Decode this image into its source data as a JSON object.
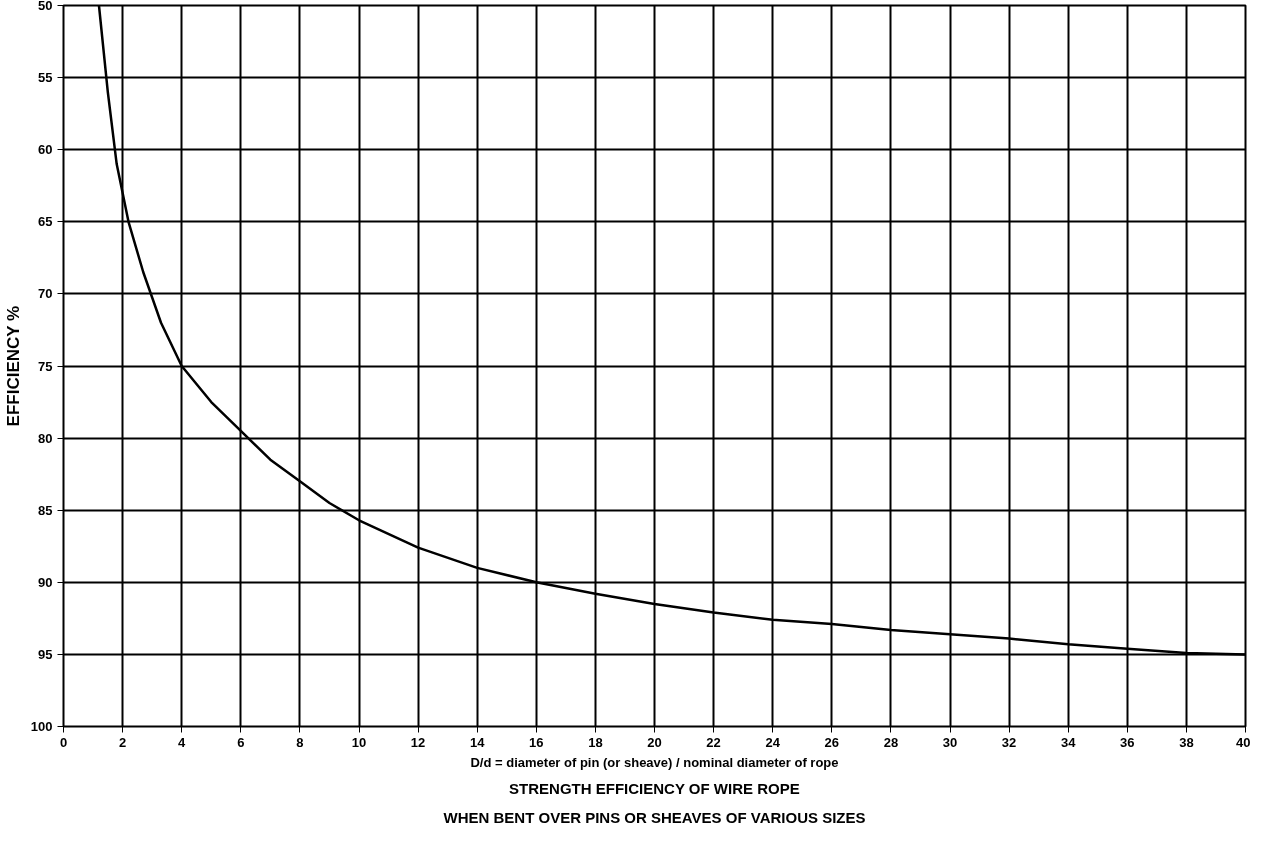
{
  "chart_data": {
    "type": "line",
    "title": "STRENGTH EFFICIENCY OF WIRE ROPE\nWHEN BENT OVER PINS OR SHEAVES OF VARIOUS SIZES",
    "xlabel": "D/d = diameter of pin (or sheave) / nominal diameter of rope",
    "ylabel": "EFFICIENCY %",
    "series": [
      {
        "color": "#000000",
        "x": [
          1.2,
          1.5,
          1.8,
          2.2,
          2.7,
          3.3,
          4,
          5,
          6,
          7,
          8,
          9,
          10,
          12,
          14,
          16,
          18,
          20,
          22,
          24,
          26,
          28,
          30,
          32,
          34,
          36,
          38,
          40
        ],
        "values": [
          50,
          56,
          61,
          65,
          68.5,
          72,
          75,
          77.5,
          79.5,
          81.5,
          83,
          84.5,
          85.7,
          87.6,
          89,
          90,
          90.8,
          91.5,
          92.1,
          92.6,
          92.9,
          93.3,
          93.6,
          93.9,
          94.3,
          94.6,
          94.9,
          95
        ]
      }
    ],
    "xlim": [
      0,
      40
    ],
    "xticks": [
      0,
      2,
      4,
      6,
      8,
      10,
      12,
      14,
      16,
      18,
      20,
      22,
      24,
      26,
      28,
      30,
      32,
      34,
      36,
      38,
      40
    ],
    "ylim": [
      100,
      50
    ],
    "yticks": [
      50,
      55,
      60,
      65,
      70,
      75,
      80,
      85,
      90,
      95,
      100
    ],
    "grid": true,
    "marker": "none",
    "line_style": "solid"
  }
}
